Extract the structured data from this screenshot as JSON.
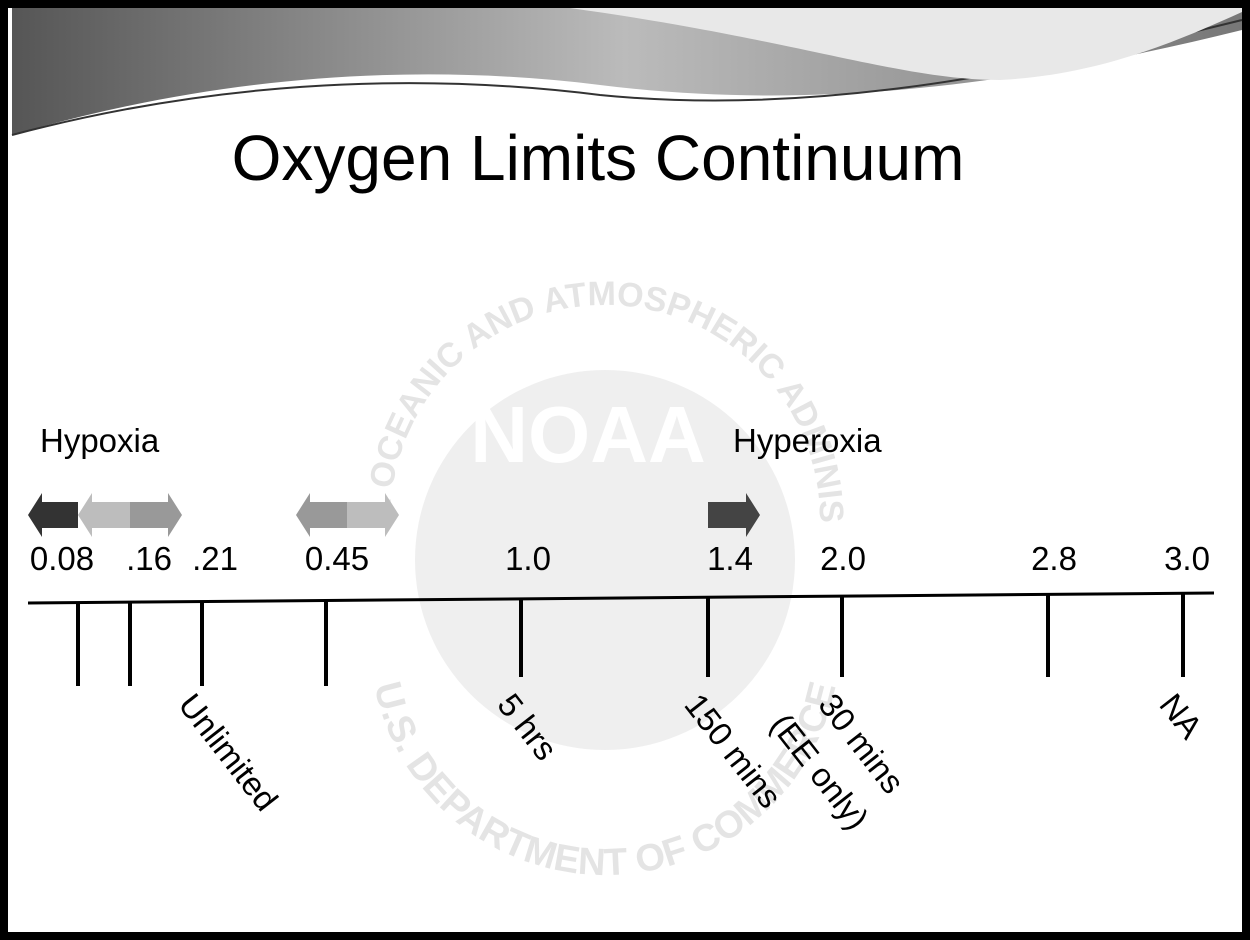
{
  "title": "Oxygen Limits Continuum",
  "zones": {
    "hypoxia": "Hypoxia",
    "hyperoxia": "Hyperoxia"
  },
  "watermark": {
    "top": "NATIONAL OCEANIC AND ATMOSPHERIC ADMINISTRATION",
    "bottom": "U.S. DEPARTMENT OF COMMERCE",
    "logo": "NOAA"
  },
  "ticks": [
    {
      "label": "0.08"
    },
    {
      "label": ".16"
    },
    {
      "label": ".21",
      "time": [
        "Unlimited"
      ]
    },
    {
      "label": "0.45"
    },
    {
      "label": "1.0",
      "time": [
        "5 hrs"
      ]
    },
    {
      "label": "1.4",
      "time": [
        "150 mins"
      ]
    },
    {
      "label": "2.0",
      "time": [
        "30 mins",
        "(EE only)"
      ]
    },
    {
      "label": "2.8"
    },
    {
      "label": "3.0",
      "time": [
        "NA"
      ]
    }
  ]
}
